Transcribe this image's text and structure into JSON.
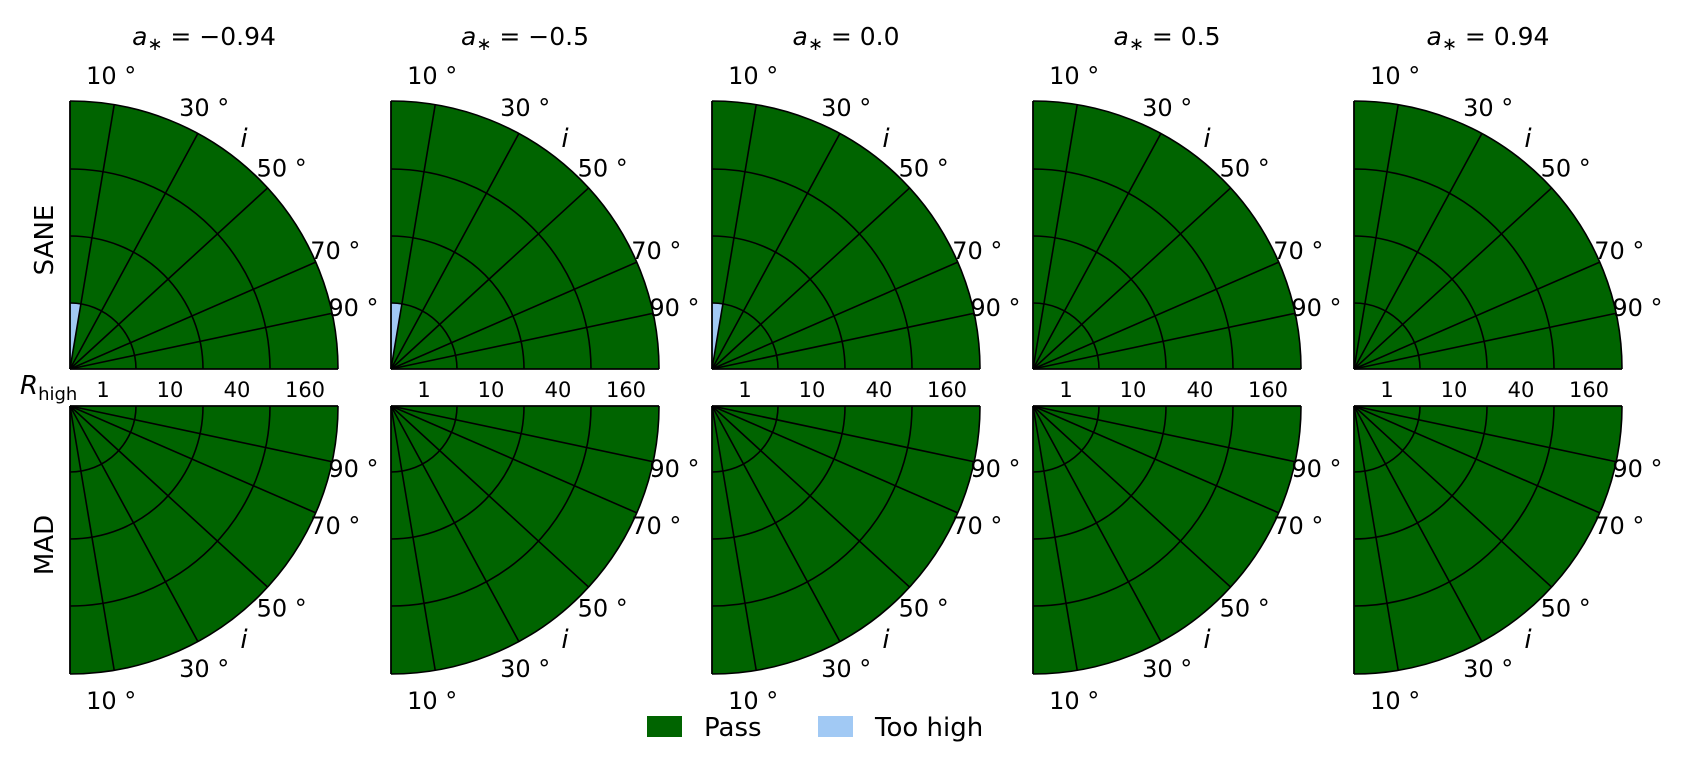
{
  "chart_data": {
    "type": "polar-grid",
    "title": "",
    "columns": [
      {
        "spin": "a* = -0.94",
        "sym": "a",
        "sub": "∗",
        "eq": " = −0.94"
      },
      {
        "spin": "a* = -0.5",
        "sym": "a",
        "sub": "∗",
        "eq": " = −0.5"
      },
      {
        "spin": "a* = 0.0",
        "sym": "a",
        "sub": "∗",
        "eq": " = 0.0"
      },
      {
        "spin": "a* = 0.5",
        "sym": "a",
        "sub": "∗",
        "eq": " = 0.5"
      },
      {
        "spin": "a* = 0.94",
        "sym": "a",
        "sub": "∗",
        "eq": " = 0.94"
      }
    ],
    "rows": [
      "SANE",
      "MAD"
    ],
    "radial_axis": {
      "label_sym": "R",
      "label_sub": "high",
      "values": [
        1,
        10,
        40,
        160
      ],
      "ticks": [
        "1",
        "10",
        "40",
        "160"
      ]
    },
    "angular_axis": {
      "label": "i",
      "values": [
        10,
        30,
        50,
        70,
        90
      ],
      "ticks": [
        "10 °",
        "30 °",
        "50 °",
        "70 °",
        "90 °"
      ]
    },
    "categories": [
      "Pass",
      "Too high"
    ],
    "colors": {
      "Pass": "#006400",
      "Too high": "#a1c9f4"
    },
    "results": {
      "SANE": [
        {
          "spin": "a* = -0.94",
          "cells": [
            {
              "r_high": 1,
              "i": 10,
              "status": "Too high"
            }
          ],
          "default_status": "Pass"
        },
        {
          "spin": "a* = -0.5",
          "cells": [
            {
              "r_high": 1,
              "i": 10,
              "status": "Too high"
            }
          ],
          "default_status": "Pass"
        },
        {
          "spin": "a* = 0.0",
          "cells": [
            {
              "r_high": 1,
              "i": 10,
              "status": "Too high"
            }
          ],
          "default_status": "Pass"
        },
        {
          "spin": "a* = 0.5",
          "cells": [],
          "default_status": "Pass"
        },
        {
          "spin": "a* = 0.94",
          "cells": [],
          "default_status": "Pass"
        }
      ],
      "MAD": [
        {
          "spin": "a* = -0.94",
          "cells": [],
          "default_status": "Pass"
        },
        {
          "spin": "a* = -0.5",
          "cells": [],
          "default_status": "Pass"
        },
        {
          "spin": "a* = 0.0",
          "cells": [],
          "default_status": "Pass"
        },
        {
          "spin": "a* = 0.5",
          "cells": [],
          "default_status": "Pass"
        },
        {
          "spin": "a* = 0.94",
          "cells": [],
          "default_status": "Pass"
        }
      ]
    },
    "legend": {
      "placement": "bottom-center",
      "entries": [
        "Pass",
        "Too high"
      ]
    }
  }
}
